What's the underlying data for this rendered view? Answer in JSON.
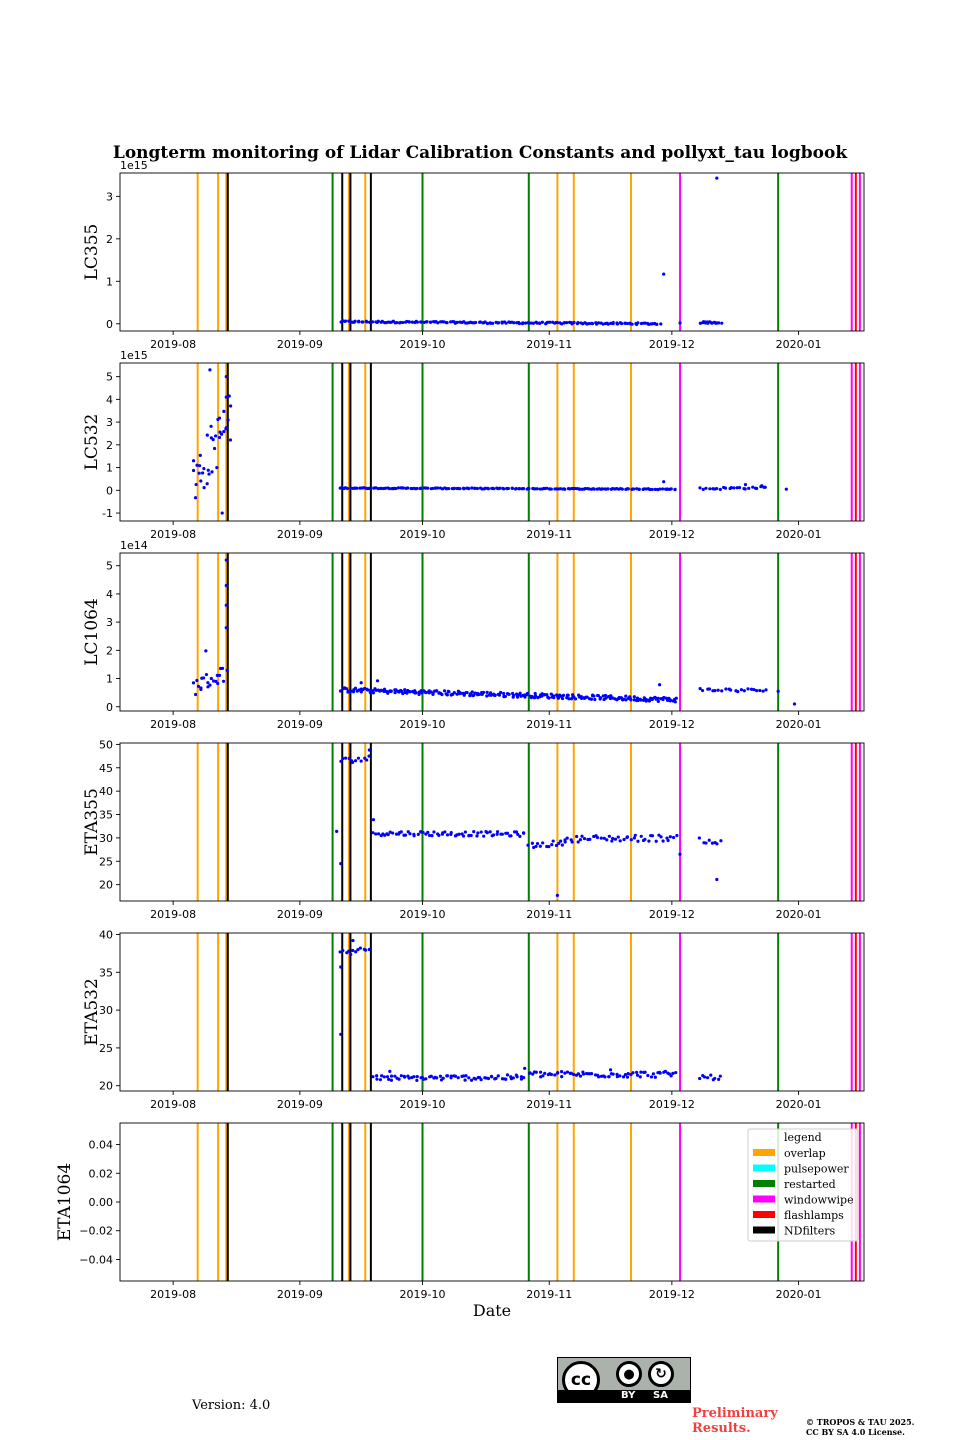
{
  "figure": {
    "title": "Longterm monitoring of Lidar Calibration Constants and pollyxt_tau logbook",
    "xlabel": "Date",
    "version": "Version: 4.0",
    "preliminary": [
      "Preliminary",
      "Results."
    ],
    "copyright": [
      "© TROPOS & TAU 2025.",
      "CC BY SA 4.0 License."
    ],
    "cc_badge": {
      "labels": [
        "BY",
        "SA"
      ],
      "icons": [
        "cc-icon",
        "person-icon",
        "share-alike-icon"
      ],
      "background": "#aab2ab"
    }
  },
  "chart_data": [
    {
      "type": "scatter",
      "ylabel": "LC355",
      "exponent_label": "1e15",
      "scale": 1000000000000000.0,
      "yticks": [
        0,
        1,
        2,
        3
      ],
      "ylim": [
        -0.17,
        3.55
      ],
      "segments": [
        {
          "x0": "2019-09-11",
          "x1": "2019-11-28",
          "y0": 0.05,
          "y1": 0.0,
          "n": 170,
          "noise": 0.02
        },
        {
          "x0": "2019-12-08",
          "x1": "2019-12-13",
          "y0": 0.03,
          "y1": 0.03,
          "n": 16,
          "noise": 0.02
        }
      ],
      "points": [
        [
          "2019-11-29",
          1.17
        ],
        [
          "2019-12-12",
          3.43
        ],
        [
          "2019-12-03",
          0.02
        ]
      ]
    },
    {
      "type": "scatter",
      "ylabel": "LC532",
      "exponent_label": "1e15",
      "scale": 1000000000000000.0,
      "yticks": [
        -1,
        0,
        1,
        2,
        3,
        4,
        5
      ],
      "ylim": [
        -1.35,
        5.6
      ],
      "segments": [
        {
          "x0": "2019-08-06",
          "x1": "2019-08-15",
          "y0": 0.3,
          "y1": 3.2,
          "n": 36,
          "noise": 1.2
        },
        {
          "x0": "2019-09-11",
          "x1": "2019-12-02",
          "y0": 0.1,
          "y1": 0.05,
          "n": 180,
          "noise": 0.02
        },
        {
          "x0": "2019-12-08",
          "x1": "2019-12-24",
          "y0": 0.07,
          "y1": 0.12,
          "n": 24,
          "noise": 0.05
        }
      ],
      "points": [
        [
          "2019-08-10",
          5.3
        ],
        [
          "2019-08-14",
          5.0
        ],
        [
          "2019-08-14",
          4.1
        ],
        [
          "2019-08-13",
          -1.0
        ],
        [
          "2019-11-29",
          0.38
        ],
        [
          "2019-12-19",
          0.25
        ],
        [
          "2019-12-23",
          0.2
        ],
        [
          "2019-12-29",
          0.05
        ]
      ]
    },
    {
      "type": "scatter",
      "ylabel": "LC1064",
      "exponent_label": "1e14",
      "scale": 100000000000000.0,
      "yticks": [
        0,
        1,
        2,
        3,
        4,
        5
      ],
      "ylim": [
        -0.15,
        5.45
      ],
      "segments": [
        {
          "x0": "2019-08-06",
          "x1": "2019-08-14",
          "y0": 0.7,
          "y1": 1.2,
          "n": 22,
          "noise": 0.3
        },
        {
          "x0": "2019-09-11",
          "x1": "2019-12-02",
          "y0": 0.6,
          "y1": 0.25,
          "n": 260,
          "noise": 0.08
        },
        {
          "x0": "2019-12-08",
          "x1": "2019-12-24",
          "y0": 0.6,
          "y1": 0.58,
          "n": 22,
          "noise": 0.06
        }
      ],
      "points": [
        [
          "2019-08-09",
          1.98
        ],
        [
          "2019-08-14",
          5.2
        ],
        [
          "2019-08-14",
          4.3
        ],
        [
          "2019-08-14",
          3.6
        ],
        [
          "2019-08-14",
          2.8
        ],
        [
          "2019-09-16",
          0.85
        ],
        [
          "2019-09-20",
          0.92
        ],
        [
          "2019-11-28",
          0.78
        ],
        [
          "2019-12-31",
          0.1
        ],
        [
          "2019-12-27",
          0.55
        ]
      ]
    },
    {
      "type": "scatter",
      "ylabel": "ETA355",
      "exponent_label": "",
      "scale": 1,
      "yticks": [
        20,
        25,
        30,
        35,
        40,
        45,
        50
      ],
      "ylim": [
        16.5,
        50.3
      ],
      "segments": [
        {
          "x0": "2019-09-11",
          "x1": "2019-09-18",
          "y0": 46.5,
          "y1": 47.0,
          "n": 12,
          "noise": 0.6
        },
        {
          "x0": "2019-09-19",
          "x1": "2019-10-26",
          "y0": 31.0,
          "y1": 30.8,
          "n": 70,
          "noise": 0.5
        },
        {
          "x0": "2019-10-27",
          "x1": "2019-11-05",
          "y0": 28.3,
          "y1": 29.0,
          "n": 16,
          "noise": 0.6
        },
        {
          "x0": "2019-11-05",
          "x1": "2019-12-02",
          "y0": 29.8,
          "y1": 30.0,
          "n": 45,
          "noise": 0.7
        },
        {
          "x0": "2019-12-08",
          "x1": "2019-12-13",
          "y0": 29.5,
          "y1": 29.0,
          "n": 8,
          "noise": 0.5
        }
      ],
      "points": [
        [
          "2019-09-10",
          31.4
        ],
        [
          "2019-09-11",
          24.5
        ],
        [
          "2019-09-18",
          48.8
        ],
        [
          "2019-09-19",
          33.9
        ],
        [
          "2019-11-03",
          17.7
        ],
        [
          "2019-12-03",
          26.5
        ],
        [
          "2019-12-12",
          21.1
        ]
      ]
    },
    {
      "type": "scatter",
      "ylabel": "ETA532",
      "exponent_label": "",
      "scale": 1,
      "yticks": [
        20,
        25,
        30,
        35,
        40
      ],
      "ylim": [
        19.3,
        40.2
      ],
      "segments": [
        {
          "x0": "2019-09-11",
          "x1": "2019-09-18",
          "y0": 37.5,
          "y1": 38.3,
          "n": 12,
          "noise": 0.7
        },
        {
          "x0": "2019-09-19",
          "x1": "2019-10-26",
          "y0": 21.0,
          "y1": 21.1,
          "n": 72,
          "noise": 0.35
        },
        {
          "x0": "2019-10-27",
          "x1": "2019-12-02",
          "y0": 21.5,
          "y1": 21.5,
          "n": 70,
          "noise": 0.4
        },
        {
          "x0": "2019-12-08",
          "x1": "2019-12-13",
          "y0": 21.2,
          "y1": 21.0,
          "n": 9,
          "noise": 0.3
        }
      ],
      "points": [
        [
          "2019-09-11",
          26.8
        ],
        [
          "2019-09-14",
          39.2
        ],
        [
          "2019-09-11",
          35.7
        ],
        [
          "2019-10-26",
          22.3
        ],
        [
          "2019-09-23",
          21.9
        ],
        [
          "2019-11-16",
          22.1
        ]
      ]
    },
    {
      "type": "scatter",
      "ylabel": "ETA1064",
      "exponent_label": "",
      "scale": 1,
      "yticks": [
        -0.04,
        -0.02,
        0.0,
        0.02,
        0.04
      ],
      "ytick_labels": [
        "−0.04",
        "−0.02",
        "0.00",
        "0.02",
        "0.04"
      ],
      "ylim": [
        -0.055,
        0.055
      ],
      "segments": [],
      "points": [],
      "show_xlabel": true,
      "show_legend": true
    }
  ],
  "x_axis": {
    "range": [
      "2019-07-19",
      "2020-01-17"
    ],
    "ticks": [
      "2019-08-01",
      "2019-09-01",
      "2019-10-01",
      "2019-11-01",
      "2019-12-01",
      "2020-01-01"
    ],
    "tick_labels": [
      "2019-08",
      "2019-09",
      "2019-10",
      "2019-11",
      "2019-12",
      "2020-01"
    ]
  },
  "logbook_events": [
    {
      "date": "2019-08-07",
      "type": "overlap"
    },
    {
      "date": "2019-08-12",
      "type": "overlap"
    },
    {
      "date": "2019-08-14",
      "type": "overlap"
    },
    {
      "date": "2019-08-14",
      "type": "NDfilters"
    },
    {
      "date": "2019-09-09",
      "type": "restarted"
    },
    {
      "date": "2019-09-11",
      "type": "NDfilters"
    },
    {
      "date": "2019-09-13",
      "type": "overlap"
    },
    {
      "date": "2019-09-13",
      "type": "NDfilters"
    },
    {
      "date": "2019-09-17",
      "type": "overlap"
    },
    {
      "date": "2019-09-18",
      "type": "NDfilters"
    },
    {
      "date": "2019-10-01",
      "type": "restarted"
    },
    {
      "date": "2019-10-27",
      "type": "restarted"
    },
    {
      "date": "2019-11-03",
      "type": "overlap"
    },
    {
      "date": "2019-11-07",
      "type": "overlap"
    },
    {
      "date": "2019-11-21",
      "type": "overlap"
    },
    {
      "date": "2019-12-03",
      "type": "windowwipe"
    },
    {
      "date": "2019-12-27",
      "type": "restarted"
    },
    {
      "date": "2020-01-14",
      "type": "windowwipe"
    },
    {
      "date": "2020-01-15",
      "type": "flashlamps"
    },
    {
      "date": "2020-01-16",
      "type": "windowwipe"
    }
  ],
  "legend": {
    "title": "legend",
    "entries": [
      {
        "label": "overlap",
        "color": "#ffa500"
      },
      {
        "label": "pulsepower",
        "color": "#00ffff"
      },
      {
        "label": "restarted",
        "color": "#008000"
      },
      {
        "label": "windowwipe",
        "color": "#ff00ff"
      },
      {
        "label": "flashlamps",
        "color": "#ff0000"
      },
      {
        "label": "NDfilters",
        "color": "#000000"
      }
    ]
  },
  "colors": {
    "points": "#0000ff"
  }
}
